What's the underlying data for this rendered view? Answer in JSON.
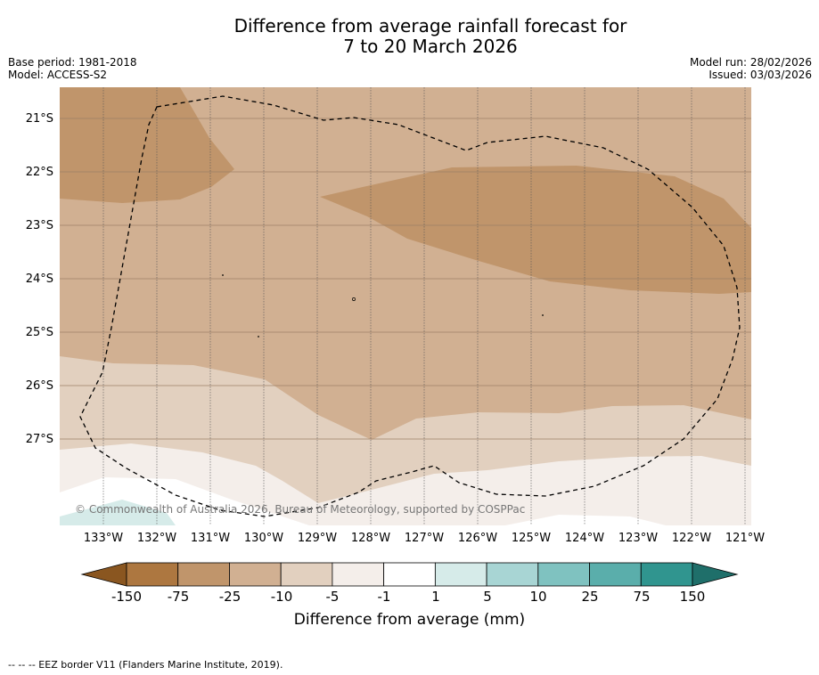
{
  "title": {
    "line1": "Difference from average rainfall forecast for",
    "line2": "7 to 20 March 2026"
  },
  "info_left": {
    "base_period": "Base period: 1981-2018",
    "model": "Model: ACCESS-S2"
  },
  "info_right": {
    "model_run": "Model run: 28/02/2026",
    "issued": "Issued: 03/03/2026"
  },
  "map": {
    "lat_labels": [
      "21°S",
      "22°S",
      "23°S",
      "24°S",
      "25°S",
      "26°S",
      "27°S"
    ],
    "lon_labels": [
      "133°W",
      "132°W",
      "131°W",
      "130°W",
      "129°W",
      "128°W",
      "127°W",
      "126°W",
      "125°W",
      "124°W",
      "123°W",
      "122°W",
      "121°W"
    ],
    "copyright": "© Commonwealth of Australia 2026, Bureau of Meteorology, supported by COSPPac"
  },
  "colorbar": {
    "tick_labels": [
      "-150",
      "-75",
      "-25",
      "-10",
      "-5",
      "-1",
      "1",
      "5",
      "10",
      "25",
      "75",
      "150"
    ],
    "colors": [
      "#ad7740",
      "#c0956b",
      "#d1b092",
      "#e2d0bf",
      "#f4eeea",
      "#ffffff",
      "#d6ebe9",
      "#a8d5d4",
      "#7fc2c0",
      "#5aaeab",
      "#30958f"
    ],
    "low_extend_color": "#8a5620",
    "high_extend_color": "#1f6f6a",
    "label": "Difference from average (mm)"
  },
  "footnote": "-- -- -- EEZ border V11 (Flanders Marine Institute, 2019)."
}
